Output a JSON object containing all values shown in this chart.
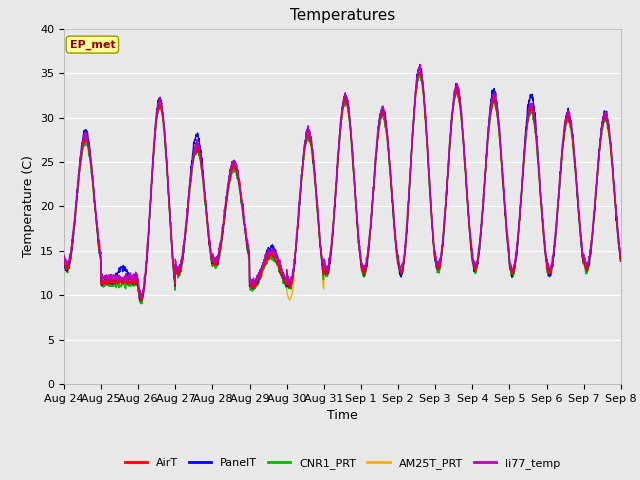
{
  "title": "Temperatures",
  "xlabel": "Time",
  "ylabel": "Temperature (C)",
  "ylim": [
    0,
    40
  ],
  "yticks": [
    0,
    5,
    10,
    15,
    20,
    25,
    30,
    35,
    40
  ],
  "plot_bg_color": "#e8e8e8",
  "legend_labels": [
    "AirT",
    "PanelT",
    "CNR1_PRT",
    "AM25T_PRT",
    "li77_temp"
  ],
  "legend_colors": [
    "#ff0000",
    "#0000ff",
    "#00bb00",
    "#ffaa00",
    "#bb00bb"
  ],
  "annotation_text": "EP_met",
  "annotation_color": "#990000",
  "annotation_bg": "#ffff99",
  "xtick_labels": [
    "Aug 24",
    "Aug 25",
    "Aug 26",
    "Aug 27",
    "Aug 28",
    "Aug 29",
    "Aug 30",
    "Aug 31",
    "Sep 1",
    "Sep 2",
    "Sep 3",
    "Sep 4",
    "Sep 5",
    "Sep 6",
    "Sep 7",
    "Sep 8"
  ],
  "title_fontsize": 11,
  "axis_fontsize": 9,
  "tick_fontsize": 8,
  "line_width": 1.0,
  "grid_color": "#ffffff",
  "grid_linewidth": 0.8,
  "n_days": 15,
  "n_pts_per_day": 144,
  "day_peaks": [
    27.5,
    11.5,
    31.5,
    26.5,
    24.5,
    14.5,
    28.0,
    32.0,
    30.5,
    35.0,
    33.0,
    32.0,
    31.0,
    30.0,
    30.0
  ],
  "day_mins": [
    13.0,
    11.5,
    12.5,
    12.5,
    13.5,
    11.0,
    12.5,
    12.5,
    12.5,
    12.5,
    13.0,
    13.0,
    12.5,
    12.5,
    13.0
  ],
  "panel_offsets": [
    1.0,
    1.5,
    0.5,
    1.5,
    0.5,
    1.0,
    0.5,
    0.5,
    0.5,
    0.5,
    0.5,
    1.0,
    1.5,
    0.5,
    0.5
  ],
  "am25_spike_day": 12,
  "am25_spike_val": 31.5
}
